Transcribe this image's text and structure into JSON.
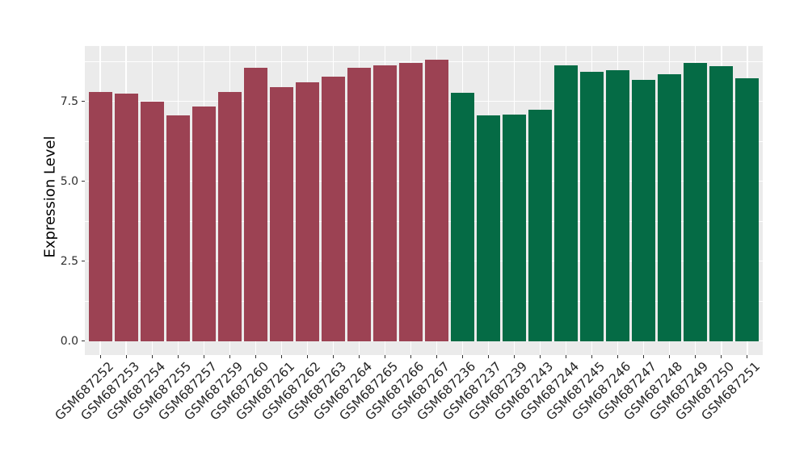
{
  "chart_data": {
    "type": "bar",
    "title": "",
    "xlabel": "",
    "ylabel": "Expression Level",
    "ylim": [
      -0.44,
      9.23
    ],
    "yticks": [
      0,
      2.5,
      5,
      7.5
    ],
    "ytick_labels": [
      "0.0",
      "2.5",
      "5.0",
      "7.5"
    ],
    "yticks_minor": [
      1.25,
      3.75,
      6.25,
      8.75
    ],
    "grid": true,
    "legend": "none",
    "panel_background": "#EBEBEB",
    "grid_color": "#FFFFFF",
    "tick_color": "#333333",
    "bar_palette": {
      "maroon": "#9C4253",
      "green": "#056B45"
    },
    "categories": [
      "GSM687252",
      "GSM687253",
      "GSM687254",
      "GSM687255",
      "GSM687257",
      "GSM687259",
      "GSM687260",
      "GSM687261",
      "GSM687262",
      "GSM687263",
      "GSM687264",
      "GSM687265",
      "GSM687266",
      "GSM687267",
      "GSM687236",
      "GSM687237",
      "GSM687239",
      "GSM687243",
      "GSM687244",
      "GSM687245",
      "GSM687246",
      "GSM687247",
      "GSM687248",
      "GSM687249",
      "GSM687250",
      "GSM687251"
    ],
    "values": [
      7.78,
      7.74,
      7.5,
      7.07,
      7.33,
      7.79,
      8.56,
      7.93,
      8.09,
      8.28,
      8.54,
      8.63,
      8.69,
      8.79,
      7.76,
      7.06,
      7.08,
      7.23,
      8.62,
      8.43,
      8.47,
      8.18,
      8.34,
      8.7,
      8.6,
      8.22
    ],
    "colors": [
      "#9C4253",
      "#9C4253",
      "#9C4253",
      "#9C4253",
      "#9C4253",
      "#9C4253",
      "#9C4253",
      "#9C4253",
      "#9C4253",
      "#9C4253",
      "#9C4253",
      "#9C4253",
      "#9C4253",
      "#9C4253",
      "#056B45",
      "#056B45",
      "#056B45",
      "#056B45",
      "#056B45",
      "#056B45",
      "#056B45",
      "#056B45",
      "#056B45",
      "#056B45",
      "#056B45",
      "#056B45"
    ]
  }
}
